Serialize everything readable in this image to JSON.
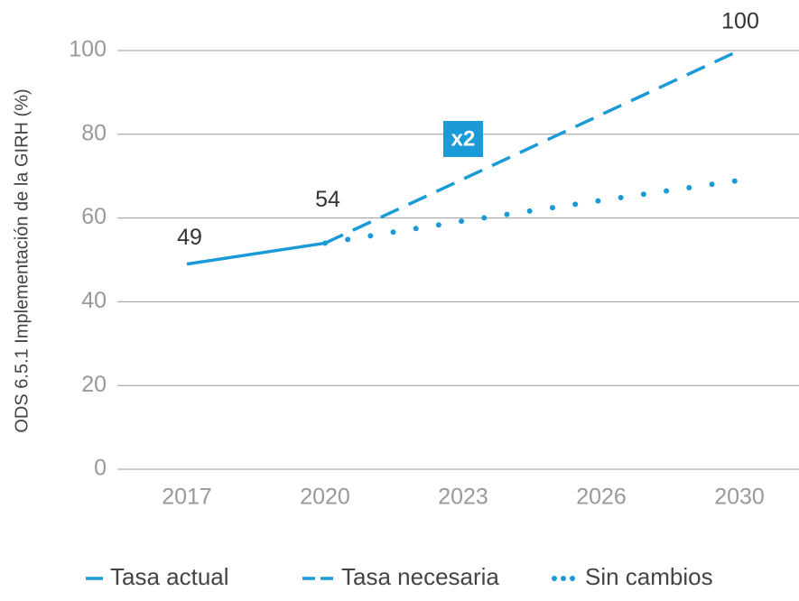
{
  "chart_data": {
    "type": "line",
    "y_axis_label": "ODS 6.5.1 Implementación de la GIRH (%)",
    "categories": [
      "2017",
      "2020",
      "2023",
      "2026",
      "2030"
    ],
    "series": [
      {
        "name": "Tasa actual",
        "color": "#1a9ad6",
        "style": "solid",
        "values": [
          49,
          54,
          null,
          null,
          null
        ]
      },
      {
        "name": "Tasa necesaria",
        "color": "#1a9ad6",
        "style": "dashed",
        "values": [
          null,
          54,
          69.3,
          84.7,
          100
        ]
      },
      {
        "name": "Sin cambios",
        "color": "#1a9ad6",
        "style": "dotted",
        "values": [
          null,
          54,
          59.3,
          64.2,
          69
        ]
      }
    ],
    "annotation": "x2",
    "ylim": [
      0,
      100
    ],
    "yticks": [
      0,
      20,
      40,
      60,
      80,
      100
    ],
    "grid": true
  }
}
